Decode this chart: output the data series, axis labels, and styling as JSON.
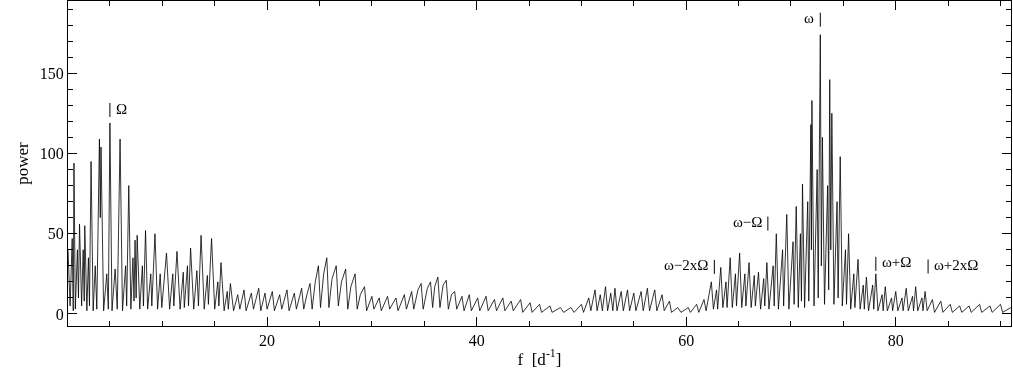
{
  "chart_data": {
    "type": "line",
    "xlabel": "f  [d$^{-1}$]",
    "ylabel": "power",
    "xlim": [
      1,
      91
    ],
    "ylim": [
      -7.5,
      195
    ],
    "xticks": [
      {
        "value": 5,
        "label": null
      },
      {
        "value": 10,
        "label": null
      },
      {
        "value": 15,
        "label": null
      },
      20,
      {
        "value": 25,
        "label": null
      },
      {
        "value": 30,
        "label": null
      },
      {
        "value": 35,
        "label": null
      },
      40,
      {
        "value": 45,
        "label": null
      },
      {
        "value": 50,
        "label": null
      },
      {
        "value": 55,
        "label": null
      },
      60,
      {
        "value": 65,
        "label": null
      },
      {
        "value": 70,
        "label": null
      },
      {
        "value": 75,
        "label": null
      },
      80,
      {
        "value": 85,
        "label": null
      },
      {
        "value": 90,
        "label": null
      }
    ],
    "yticks": [
      0,
      {
        "value": 10,
        "label": null
      },
      {
        "value": 20,
        "label": null
      },
      {
        "value": 30,
        "label": null
      },
      {
        "value": 40,
        "label": null
      },
      50,
      {
        "value": 60,
        "label": null
      },
      {
        "value": 70,
        "label": null
      },
      {
        "value": 80,
        "label": null
      },
      {
        "value": 90,
        "label": null
      },
      100,
      {
        "value": 110,
        "label": null
      },
      {
        "value": 120,
        "label": null
      },
      {
        "value": 130,
        "label": null
      },
      {
        "value": 140,
        "label": null
      },
      150,
      {
        "value": 160,
        "label": null
      },
      {
        "value": 170,
        "label": null
      },
      {
        "value": 180,
        "label": null
      },
      {
        "value": 190,
        "label": null
      }
    ],
    "marker": "none",
    "line_style": "solid",
    "annotations": [
      {
        "text": "Ω",
        "x": 5.0,
        "y": 119
      },
      {
        "text": "ω",
        "x": 72.8,
        "y": 174
      },
      {
        "text": "ω−Ω",
        "x": 67.7,
        "y": 32
      },
      {
        "text": "ω−2xΩ",
        "x": 62.4,
        "y": 20
      },
      {
        "text": "ω+Ω",
        "x": 78.1,
        "y": 25
      },
      {
        "text": "ω+2xΩ",
        "x": 82.8,
        "y": 14
      }
    ],
    "series": [
      {
        "color": "#000000",
        "x": [
          1.0,
          1.2,
          1.4,
          1.5,
          1.57,
          1.7,
          1.9,
          2.0,
          2.1,
          2.3,
          2.45,
          2.55,
          2.6,
          2.8,
          2.95,
          3.05,
          3.2,
          3.4,
          3.6,
          3.75,
          4.0,
          4.08,
          4.15,
          4.4,
          4.7,
          4.85,
          5.0,
          5.2,
          5.5,
          5.7,
          5.97,
          6.2,
          6.5,
          6.6,
          6.8,
          7.0,
          7.2,
          7.3,
          7.4,
          7.5,
          7.6,
          7.85,
          8.1,
          8.2,
          8.4,
          8.6,
          8.9,
          9.0,
          9.3,
          9.55,
          9.8,
          9.95,
          10.4,
          10.7,
          11.0,
          11.1,
          11.4,
          11.7,
          12.0,
          12.1,
          12.4,
          12.5,
          12.7,
          13.0,
          13.3,
          13.45,
          13.7,
          14.0,
          14.3,
          14.4,
          14.7,
          15.0,
          15.3,
          15.4,
          15.6,
          15.9,
          16.2,
          16.3,
          16.5,
          16.8,
          17.2,
          17.4,
          17.8,
          18.0,
          18.5,
          18.7,
          19.2,
          19.4,
          19.8,
          20.0,
          20.5,
          20.7,
          21.2,
          21.4,
          21.9,
          22.1,
          22.6,
          22.8,
          23.3,
          23.5,
          23.8,
          24.1,
          24.3,
          24.6,
          24.9,
          25.1,
          25.4,
          25.7,
          25.9,
          26.2,
          26.6,
          26.8,
          27.1,
          27.5,
          27.7,
          28.0,
          28.4,
          28.6,
          28.9,
          29.3,
          29.5,
          30.0,
          30.2,
          30.7,
          30.9,
          31.5,
          31.7,
          32.3,
          32.5,
          33.1,
          33.3,
          33.8,
          34.0,
          34.4,
          34.7,
          34.9,
          35.3,
          35.6,
          35.8,
          36.0,
          36.3,
          36.5,
          36.8,
          37.1,
          37.3,
          37.6,
          37.9,
          38.1,
          38.6,
          38.8,
          39.3,
          39.5,
          40.1,
          40.3,
          40.9,
          41.1,
          41.7,
          41.9,
          42.5,
          42.7,
          43.3,
          43.5,
          44.2,
          44.4,
          45.1,
          45.3,
          46.0,
          46.2,
          47.0,
          47.2,
          48.0,
          48.3,
          49.0,
          49.3,
          50.0,
          50.2,
          50.7,
          50.9,
          51.3,
          51.5,
          51.8,
          52.0,
          52.3,
          52.5,
          52.8,
          53.0,
          53.2,
          53.4,
          53.8,
          54.0,
          54.4,
          54.6,
          55.0,
          55.2,
          55.7,
          55.9,
          56.3,
          56.5,
          57.0,
          57.2,
          57.7,
          57.9,
          58.4,
          58.6,
          59.2,
          59.5,
          60.2,
          60.4,
          61.0,
          61.2,
          61.7,
          61.9,
          62.4,
          62.6,
          62.9,
          63.0,
          63.3,
          63.5,
          63.8,
          63.9,
          64.2,
          64.4,
          64.7,
          64.8,
          65.1,
          65.3,
          65.6,
          65.7,
          66.0,
          66.2,
          66.5,
          66.6,
          66.9,
          67.1,
          67.4,
          67.5,
          67.7,
          67.9,
          68.3,
          68.4,
          68.6,
          68.8,
          69.2,
          69.3,
          69.6,
          69.8,
          70.2,
          70.3,
          70.5,
          70.7,
          70.9,
          71.0,
          71.1,
          71.3,
          71.6,
          71.7,
          71.9,
          71.95,
          72.0,
          72.2,
          72.5,
          72.6,
          72.8,
          72.9,
          73.0,
          73.2,
          73.5,
          73.6,
          73.7,
          73.8,
          73.9,
          74.1,
          74.4,
          74.5,
          74.7,
          74.9,
          75.2,
          75.3,
          75.5,
          75.7,
          76.0,
          76.1,
          76.4,
          76.6,
          76.9,
          77.0,
          77.2,
          77.4,
          77.8,
          77.9,
          78.1,
          78.3,
          78.7,
          78.8,
          79.0,
          79.2,
          79.6,
          79.7,
          80.0,
          80.2,
          80.6,
          80.7,
          81.0,
          81.2,
          81.6,
          81.7,
          81.9,
          82.1,
          82.5,
          82.6,
          82.8,
          83.0,
          83.5,
          83.7,
          84.3,
          84.5,
          85.2,
          85.4,
          86.1,
          86.3,
          87.0,
          87.2,
          88.0,
          88.2,
          89.0,
          89.2,
          90.0,
          90.2,
          91.0
        ],
        "values": [
          40,
          5,
          47,
          2,
          94,
          3,
          40,
          10,
          56,
          5,
          40,
          8,
          55,
          2,
          35,
          5,
          95,
          2,
          30,
          3,
          109,
          60,
          104,
          2,
          25,
          3,
          119,
          2,
          28,
          3,
          109,
          2,
          30,
          5,
          80,
          3,
          35,
          8,
          46,
          10,
          49,
          3,
          30,
          5,
          52,
          3,
          25,
          5,
          50,
          3,
          25,
          4,
          38,
          3,
          25,
          5,
          39,
          3,
          26,
          4,
          30,
          5,
          41,
          3,
          27,
          5,
          49,
          3,
          24,
          6,
          47,
          3,
          20,
          5,
          32,
          2,
          14,
          3,
          19,
          2,
          12,
          3,
          15,
          2,
          13,
          3,
          16,
          2,
          13,
          3,
          14,
          2,
          12,
          3,
          15,
          2,
          13,
          3,
          16,
          3,
          12,
          19,
          3,
          20,
          30,
          4,
          25,
          35,
          4,
          22,
          30,
          5,
          20,
          28,
          3,
          17,
          25,
          3,
          12,
          17,
          2,
          11,
          3,
          10,
          2,
          11,
          3,
          10,
          2,
          12,
          3,
          14,
          3,
          15,
          19,
          3,
          16,
          20,
          4,
          17,
          23,
          4,
          18,
          21,
          3,
          12,
          14,
          3,
          11,
          2,
          12,
          2,
          10,
          2,
          11,
          2,
          9,
          2,
          10,
          2,
          8,
          2,
          9,
          1,
          7,
          1,
          6,
          1,
          5,
          1,
          4,
          1,
          4,
          1,
          6,
          1,
          10,
          2,
          15,
          2,
          12,
          2,
          17,
          2,
          13,
          2,
          16,
          2,
          14,
          2,
          15,
          2,
          13,
          2,
          14,
          2,
          16,
          2,
          15,
          2,
          12,
          2,
          8,
          1,
          4,
          1,
          4,
          1,
          6,
          1,
          9,
          2,
          20,
          3,
          15,
          3,
          29,
          4,
          20,
          4,
          35,
          4,
          25,
          5,
          38,
          4,
          25,
          5,
          32,
          4,
          24,
          5,
          26,
          3,
          22,
          5,
          32,
          3,
          30,
          5,
          50,
          3,
          40,
          5,
          62,
          3,
          45,
          6,
          67,
          4,
          50,
          8,
          81,
          4,
          70,
          8,
          118,
          40,
          133,
          5,
          90,
          10,
          174,
          30,
          110,
          6,
          80,
          15,
          146,
          40,
          125,
          6,
          70,
          10,
          98,
          5,
          40,
          6,
          50,
          3,
          25,
          4,
          34,
          3,
          18,
          3,
          23,
          2,
          18,
          3,
          25,
          2,
          12,
          2,
          17,
          2,
          10,
          2,
          14,
          2,
          10,
          2,
          16,
          2,
          11,
          2,
          17,
          2,
          10,
          2,
          14,
          2,
          9,
          1,
          8,
          1,
          6,
          1,
          5,
          1,
          5,
          1,
          6,
          1,
          5,
          1,
          6,
          1,
          4
        ]
      }
    ]
  }
}
